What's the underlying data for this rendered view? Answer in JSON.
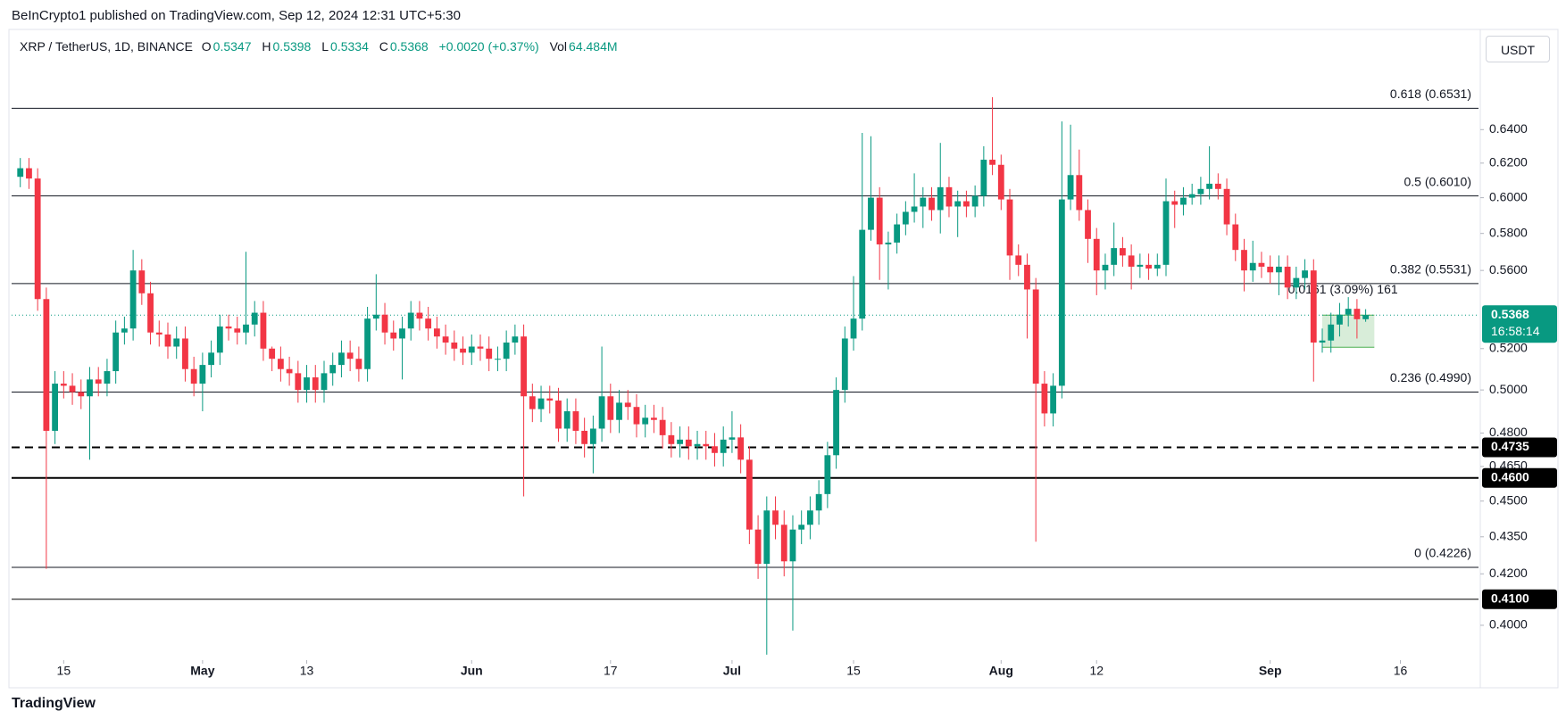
{
  "header": {
    "published": "BeInCrypto1 published on TradingView.com, Sep 12, 2024 12:31 UTC+5:30",
    "currency_button": "USDT",
    "logo": "TradingView"
  },
  "chart_data": {
    "type": "candlestick",
    "symbol": "XRP / TetherUS, 1D, BINANCE",
    "legend": {
      "o": "O",
      "h": "H",
      "l": "L",
      "c": "C",
      "change": "+0.0020 (+0.37%)",
      "vol_label": "Vol",
      "vol": "64.484M"
    },
    "up_color": "#089981",
    "down_color": "#f23645",
    "log_scale": true,
    "grid": false,
    "xlim": [
      "2024-04-09",
      "2024-09-25"
    ],
    "ylim": [
      0.387,
      0.702
    ],
    "xticks": [
      {
        "value": "2024-04-15",
        "label": "15"
      },
      {
        "value": "2024-05-01",
        "label": "May"
      },
      {
        "value": "2024-05-13",
        "label": "13"
      },
      {
        "value": "2024-06-01",
        "label": "Jun"
      },
      {
        "value": "2024-06-17",
        "label": "17"
      },
      {
        "value": "2024-07-01",
        "label": "Jul"
      },
      {
        "value": "2024-07-15",
        "label": "15"
      },
      {
        "value": "2024-08-01",
        "label": "Aug"
      },
      {
        "value": "2024-08-12",
        "label": "12"
      },
      {
        "value": "2024-09-01",
        "label": "Sep"
      },
      {
        "value": "2024-09-16",
        "label": "16"
      }
    ],
    "yticks": [
      {
        "value": 0.64,
        "label": "0.6400"
      },
      {
        "value": 0.62,
        "label": "0.6200"
      },
      {
        "value": 0.6,
        "label": "0.6000"
      },
      {
        "value": 0.58,
        "label": "0.5800"
      },
      {
        "value": 0.56,
        "label": "0.5600"
      },
      {
        "value": 0.52,
        "label": "0.5200"
      },
      {
        "value": 0.5,
        "label": "0.5000"
      },
      {
        "value": 0.48,
        "label": "0.4800"
      },
      {
        "value": 0.465,
        "label": "0.4650"
      },
      {
        "value": 0.45,
        "label": "0.4500"
      },
      {
        "value": 0.435,
        "label": "0.4350"
      },
      {
        "value": 0.42,
        "label": "0.4200"
      },
      {
        "value": 0.4,
        "label": "0.4000"
      }
    ],
    "x": [
      "2024-04-10",
      "2024-04-11",
      "2024-04-12",
      "2024-04-13",
      "2024-04-14",
      "2024-04-15",
      "2024-04-16",
      "2024-04-17",
      "2024-04-18",
      "2024-04-19",
      "2024-04-20",
      "2024-04-21",
      "2024-04-22",
      "2024-04-23",
      "2024-04-24",
      "2024-04-25",
      "2024-04-26",
      "2024-04-27",
      "2024-04-28",
      "2024-04-29",
      "2024-04-30",
      "2024-05-01",
      "2024-05-02",
      "2024-05-03",
      "2024-05-04",
      "2024-05-05",
      "2024-05-06",
      "2024-05-07",
      "2024-05-08",
      "2024-05-09",
      "2024-05-10",
      "2024-05-11",
      "2024-05-12",
      "2024-05-13",
      "2024-05-14",
      "2024-05-15",
      "2024-05-16",
      "2024-05-17",
      "2024-05-18",
      "2024-05-19",
      "2024-05-20",
      "2024-05-21",
      "2024-05-22",
      "2024-05-23",
      "2024-05-24",
      "2024-05-25",
      "2024-05-26",
      "2024-05-27",
      "2024-05-28",
      "2024-05-29",
      "2024-05-30",
      "2024-05-31",
      "2024-06-01",
      "2024-06-02",
      "2024-06-03",
      "2024-06-04",
      "2024-06-05",
      "2024-06-06",
      "2024-06-07",
      "2024-06-08",
      "2024-06-09",
      "2024-06-10",
      "2024-06-11",
      "2024-06-12",
      "2024-06-13",
      "2024-06-14",
      "2024-06-15",
      "2024-06-16",
      "2024-06-17",
      "2024-06-18",
      "2024-06-19",
      "2024-06-20",
      "2024-06-21",
      "2024-06-22",
      "2024-06-23",
      "2024-06-24",
      "2024-06-25",
      "2024-06-26",
      "2024-06-27",
      "2024-06-28",
      "2024-06-29",
      "2024-06-30",
      "2024-07-01",
      "2024-07-02",
      "2024-07-03",
      "2024-07-04",
      "2024-07-05",
      "2024-07-06",
      "2024-07-07",
      "2024-07-08",
      "2024-07-09",
      "2024-07-10",
      "2024-07-11",
      "2024-07-12",
      "2024-07-13",
      "2024-07-14",
      "2024-07-15",
      "2024-07-16",
      "2024-07-17",
      "2024-07-18",
      "2024-07-19",
      "2024-07-20",
      "2024-07-21",
      "2024-07-22",
      "2024-07-23",
      "2024-07-24",
      "2024-07-25",
      "2024-07-26",
      "2024-07-27",
      "2024-07-28",
      "2024-07-29",
      "2024-07-30",
      "2024-07-31",
      "2024-08-01",
      "2024-08-02",
      "2024-08-03",
      "2024-08-04",
      "2024-08-05",
      "2024-08-06",
      "2024-08-07",
      "2024-08-08",
      "2024-08-09",
      "2024-08-10",
      "2024-08-11",
      "2024-08-12",
      "2024-08-13",
      "2024-08-14",
      "2024-08-15",
      "2024-08-16",
      "2024-08-17",
      "2024-08-18",
      "2024-08-19",
      "2024-08-20",
      "2024-08-21",
      "2024-08-22",
      "2024-08-23",
      "2024-08-24",
      "2024-08-25",
      "2024-08-26",
      "2024-08-27",
      "2024-08-28",
      "2024-08-29",
      "2024-08-30",
      "2024-08-31",
      "2024-09-01",
      "2024-09-02",
      "2024-09-03",
      "2024-09-04",
      "2024-09-05",
      "2024-09-06",
      "2024-09-07",
      "2024-09-08",
      "2024-09-09",
      "2024-09-10",
      "2024-09-11",
      "2024-09-12"
    ],
    "open": [
      0.612,
      0.617,
      0.611,
      0.545,
      0.481,
      0.503,
      0.502,
      0.499,
      0.497,
      0.505,
      0.503,
      0.509,
      0.528,
      0.53,
      0.56,
      0.548,
      0.528,
      0.527,
      0.521,
      0.525,
      0.51,
      0.503,
      0.512,
      0.518,
      0.531,
      0.53,
      0.528,
      0.532,
      0.538,
      0.52,
      0.515,
      0.51,
      0.508,
      0.5,
      0.506,
      0.5,
      0.508,
      0.512,
      0.518,
      0.515,
      0.51,
      0.535,
      0.537,
      0.528,
      0.525,
      0.53,
      0.538,
      0.535,
      0.53,
      0.526,
      0.523,
      0.52,
      0.518,
      0.521,
      0.52,
      0.515,
      0.515,
      0.523,
      0.526,
      0.497,
      0.491,
      0.496,
      0.495,
      0.482,
      0.49,
      0.481,
      0.475,
      0.482,
      0.497,
      0.486,
      0.494,
      0.492,
      0.484,
      0.487,
      0.486,
      0.479,
      0.475,
      0.477,
      0.474,
      0.475,
      0.474,
      0.471,
      0.477,
      0.478,
      0.468,
      0.438,
      0.424,
      0.446,
      0.44,
      0.425,
      0.438,
      0.44,
      0.446,
      0.453,
      0.47,
      0.5,
      0.525,
      0.535,
      0.582,
      0.6,
      0.574,
      0.575,
      0.585,
      0.592,
      0.595,
      0.6,
      0.593,
      0.606,
      0.595,
      0.598,
      0.595,
      0.601,
      0.622,
      0.619,
      0.599,
      0.568,
      0.563,
      0.55,
      0.503,
      0.489,
      0.502,
      0.599,
      0.613,
      0.593,
      0.577,
      0.56,
      0.563,
      0.572,
      0.568,
      0.562,
      0.563,
      0.561,
      0.563,
      0.598,
      0.596,
      0.6,
      0.602,
      0.605,
      0.608,
      0.605,
      0.585,
      0.571,
      0.56,
      0.564,
      0.562,
      0.559,
      0.562,
      0.551,
      0.556,
      0.56,
      0.523,
      0.524,
      0.532,
      0.537,
      0.54,
      0.5347
    ],
    "high": [
      0.623,
      0.623,
      0.617,
      0.551,
      0.509,
      0.509,
      0.508,
      0.505,
      0.511,
      0.511,
      0.515,
      0.534,
      0.536,
      0.571,
      0.566,
      0.554,
      0.534,
      0.533,
      0.531,
      0.531,
      0.516,
      0.518,
      0.524,
      0.537,
      0.537,
      0.536,
      0.57,
      0.544,
      0.544,
      0.521,
      0.521,
      0.516,
      0.514,
      0.512,
      0.512,
      0.514,
      0.518,
      0.524,
      0.524,
      0.521,
      0.541,
      0.558,
      0.543,
      0.534,
      0.536,
      0.544,
      0.544,
      0.541,
      0.536,
      0.532,
      0.529,
      0.526,
      0.527,
      0.527,
      0.526,
      0.521,
      0.529,
      0.532,
      0.532,
      0.503,
      0.502,
      0.502,
      0.501,
      0.496,
      0.496,
      0.487,
      0.488,
      0.521,
      0.503,
      0.5,
      0.5,
      0.498,
      0.493,
      0.493,
      0.492,
      0.485,
      0.483,
      0.483,
      0.481,
      0.481,
      0.48,
      0.483,
      0.49,
      0.484,
      0.474,
      0.444,
      0.452,
      0.452,
      0.446,
      0.444,
      0.446,
      0.452,
      0.459,
      0.476,
      0.506,
      0.531,
      0.557,
      0.638,
      0.636,
      0.606,
      0.581,
      0.591,
      0.598,
      0.614,
      0.606,
      0.606,
      0.632,
      0.612,
      0.604,
      0.604,
      0.607,
      0.63,
      0.66,
      0.625,
      0.605,
      0.574,
      0.569,
      0.556,
      0.509,
      0.508,
      0.645,
      0.643,
      0.628,
      0.599,
      0.583,
      0.569,
      0.586,
      0.578,
      0.574,
      0.569,
      0.569,
      0.569,
      0.611,
      0.604,
      0.606,
      0.608,
      0.612,
      0.63,
      0.614,
      0.611,
      0.591,
      0.577,
      0.576,
      0.57,
      0.568,
      0.568,
      0.568,
      0.562,
      0.566,
      0.566,
      0.53,
      0.538,
      0.543,
      0.546,
      0.545,
      0.5398
    ],
    "low": [
      0.606,
      0.605,
      0.539,
      0.422,
      0.475,
      0.496,
      0.493,
      0.491,
      0.468,
      0.497,
      0.497,
      0.503,
      0.522,
      0.524,
      0.542,
      0.522,
      0.521,
      0.515,
      0.515,
      0.504,
      0.497,
      0.49,
      0.506,
      0.512,
      0.524,
      0.522,
      0.522,
      0.526,
      0.514,
      0.509,
      0.504,
      0.502,
      0.494,
      0.494,
      0.494,
      0.494,
      0.502,
      0.506,
      0.509,
      0.504,
      0.504,
      0.529,
      0.522,
      0.519,
      0.505,
      0.524,
      0.529,
      0.524,
      0.52,
      0.517,
      0.514,
      0.512,
      0.512,
      0.514,
      0.509,
      0.509,
      0.509,
      0.517,
      0.452,
      0.485,
      0.485,
      0.489,
      0.476,
      0.476,
      0.475,
      0.469,
      0.462,
      0.476,
      0.48,
      0.48,
      0.486,
      0.478,
      0.478,
      0.48,
      0.473,
      0.469,
      0.469,
      0.468,
      0.468,
      0.468,
      0.465,
      0.465,
      0.471,
      0.462,
      0.432,
      0.418,
      0.389,
      0.434,
      0.419,
      0.398,
      0.432,
      0.434,
      0.44,
      0.447,
      0.464,
      0.494,
      0.519,
      0.529,
      0.576,
      0.555,
      0.55,
      0.569,
      0.579,
      0.586,
      0.583,
      0.587,
      0.58,
      0.589,
      0.578,
      0.589,
      0.589,
      0.595,
      0.613,
      0.593,
      0.555,
      0.557,
      0.525,
      0.433,
      0.483,
      0.483,
      0.496,
      0.593,
      0.587,
      0.564,
      0.547,
      0.55,
      0.557,
      0.562,
      0.55,
      0.556,
      0.555,
      0.557,
      0.557,
      0.583,
      0.59,
      0.596,
      0.596,
      0.599,
      0.599,
      0.579,
      0.565,
      0.549,
      0.554,
      0.556,
      0.553,
      0.547,
      0.545,
      0.545,
      0.55,
      0.504,
      0.518,
      0.518,
      0.526,
      0.531,
      0.525,
      0.5334
    ],
    "close": [
      0.617,
      0.611,
      0.545,
      0.481,
      0.503,
      0.502,
      0.499,
      0.497,
      0.505,
      0.503,
      0.509,
      0.528,
      0.53,
      0.56,
      0.548,
      0.528,
      0.527,
      0.521,
      0.525,
      0.51,
      0.503,
      0.512,
      0.518,
      0.531,
      0.53,
      0.528,
      0.532,
      0.538,
      0.52,
      0.515,
      0.51,
      0.508,
      0.5,
      0.506,
      0.5,
      0.508,
      0.512,
      0.518,
      0.515,
      0.51,
      0.535,
      0.537,
      0.528,
      0.525,
      0.53,
      0.538,
      0.535,
      0.53,
      0.526,
      0.523,
      0.52,
      0.518,
      0.521,
      0.52,
      0.515,
      0.515,
      0.523,
      0.526,
      0.497,
      0.491,
      0.496,
      0.495,
      0.482,
      0.49,
      0.481,
      0.475,
      0.482,
      0.497,
      0.486,
      0.494,
      0.492,
      0.484,
      0.487,
      0.486,
      0.479,
      0.475,
      0.477,
      0.474,
      0.475,
      0.474,
      0.471,
      0.477,
      0.478,
      0.468,
      0.438,
      0.424,
      0.446,
      0.44,
      0.425,
      0.438,
      0.44,
      0.446,
      0.453,
      0.47,
      0.5,
      0.525,
      0.535,
      0.582,
      0.6,
      0.574,
      0.575,
      0.585,
      0.592,
      0.595,
      0.6,
      0.593,
      0.606,
      0.595,
      0.598,
      0.595,
      0.601,
      0.622,
      0.619,
      0.599,
      0.568,
      0.563,
      0.55,
      0.503,
      0.489,
      0.502,
      0.599,
      0.613,
      0.593,
      0.577,
      0.56,
      0.563,
      0.572,
      0.568,
      0.562,
      0.563,
      0.561,
      0.563,
      0.598,
      0.596,
      0.6,
      0.602,
      0.605,
      0.608,
      0.605,
      0.585,
      0.571,
      0.56,
      0.564,
      0.562,
      0.559,
      0.562,
      0.551,
      0.556,
      0.56,
      0.523,
      0.524,
      0.532,
      0.537,
      0.54,
      0.5347,
      0.5368
    ],
    "fib_levels": [
      {
        "value": 0.6531,
        "label": "0.618 (0.6531)"
      },
      {
        "value": 0.601,
        "label": "0.5 (0.6010)"
      },
      {
        "value": 0.5531,
        "label": "0.382 (0.5531)"
      },
      {
        "value": 0.499,
        "label": "0.236 (0.4990)"
      },
      {
        "value": 0.4226,
        "label": "0 (0.4226)"
      }
    ],
    "levels": [
      {
        "value": 0.4735,
        "label": "0.4735",
        "style": "dashed"
      },
      {
        "value": 0.46,
        "label": "0.4600",
        "style": "thick"
      },
      {
        "value": 0.41,
        "label": "0.4100",
        "style": "solid"
      }
    ],
    "last_price_countdown": "16:58:14",
    "measure": {
      "label": "0.0161 (3.09%) 161",
      "from": 0.5207,
      "to": 0.5368,
      "start": "2024-09-07",
      "end": "2024-09-13"
    }
  }
}
